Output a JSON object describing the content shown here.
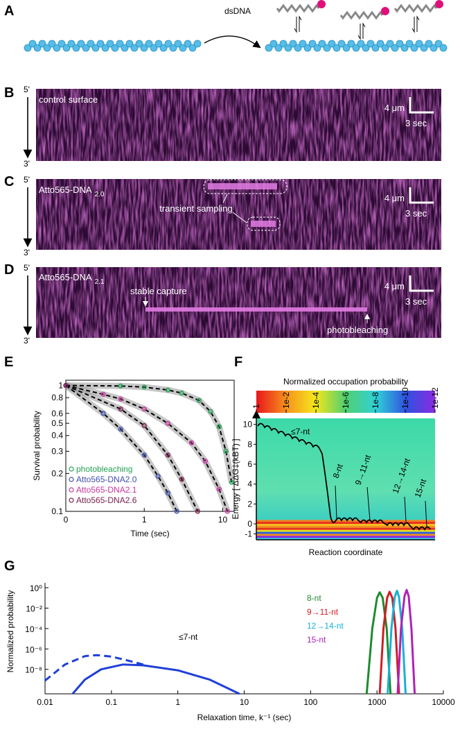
{
  "panel_labels": [
    "A",
    "B",
    "C",
    "D",
    "E",
    "F",
    "G"
  ],
  "schematic": {
    "reagent": "dsDNA"
  },
  "kymographs": [
    {
      "label": "control surface",
      "strand_top": "5'",
      "strand_bottom": "3'",
      "scale_length": "4 μm",
      "scale_time": "3 sec"
    },
    {
      "label": "Atto565-DNA",
      "label_sub": "2.0",
      "strand_top": "5'",
      "strand_bottom": "3'",
      "scale_length": "4 μm",
      "scale_time": "3 sec",
      "annotation": "transient sampling"
    },
    {
      "label": "Atto565-DNA",
      "label_sub": "2.1",
      "strand_top": "5'",
      "strand_bottom": "3'",
      "scale_length": "4 μm",
      "scale_time": "3 sec",
      "annotations": [
        "stable capture",
        "photobleaching"
      ]
    }
  ],
  "chart_data": [
    {
      "type": "survival",
      "xlabel": "Time (sec)",
      "ylabel": "Survival probability",
      "log_x": true,
      "log_y": true,
      "xlim": [
        0.1,
        14
      ],
      "ylim": [
        0.1,
        1.1
      ],
      "xticks": [
        {
          "value": 0.1,
          "label": "0"
        },
        1,
        10
      ],
      "yticks": [
        0.1,
        0.2,
        0.3,
        0.4,
        0.5,
        0.6,
        0.8,
        1
      ],
      "legend": "lower-left",
      "series": [
        {
          "name": "photobleaching",
          "color": "#22a052",
          "x": [
            0.1,
            0.5,
            1,
            2,
            3,
            5,
            7,
            9,
            11,
            13
          ],
          "values": [
            1,
            0.99,
            0.97,
            0.92,
            0.87,
            0.76,
            0.62,
            0.47,
            0.3,
            0.17
          ]
        },
        {
          "name": "Atto565-DNA2.0",
          "color": "#4050b0",
          "x": [
            0.1,
            0.3,
            0.5,
            1,
            1.5,
            2,
            2.6
          ],
          "values": [
            1,
            0.6,
            0.45,
            0.28,
            0.19,
            0.14,
            0.1
          ]
        },
        {
          "name": "Atto565-DNA2.1",
          "color": "#c8359e",
          "x": [
            0.1,
            0.3,
            0.5,
            1,
            2,
            4,
            6,
            9,
            11.5
          ],
          "values": [
            1,
            0.85,
            0.78,
            0.65,
            0.5,
            0.35,
            0.25,
            0.15,
            0.1
          ]
        },
        {
          "name": "Atto565-DNA2.6",
          "color": "#7a2050",
          "x": [
            0.1,
            0.5,
            1,
            2,
            3,
            4.8
          ],
          "values": [
            1,
            0.65,
            0.48,
            0.28,
            0.18,
            0.1
          ]
        }
      ]
    },
    {
      "type": "energy-landscape",
      "colorbar_title": "Normalized occupation probability",
      "colorbar_ticks": [
        {
          "value": 1,
          "label": "1"
        },
        {
          "value": 0.01,
          "label": "1e-2"
        },
        {
          "value": 0.0001,
          "label": "1e-4"
        },
        {
          "value": 1e-06,
          "label": "1e-6"
        },
        {
          "value": 1e-08,
          "label": "1e-8"
        },
        {
          "value": 1e-10,
          "label": "1e-10"
        },
        {
          "value": 1e-12,
          "label": "1e-12"
        }
      ],
      "ylabel": "Energy [ ΔΔG‡(kBT) ]",
      "xlabel": "Reaction coordinate",
      "ylim": [
        -1.6,
        10.6
      ],
      "yticks": [
        10,
        8,
        6,
        4,
        2,
        0,
        -1
      ],
      "annotations": [
        "≤7-nt",
        "8-nt",
        "9→11-nt",
        "12→14-nt",
        "15-nt"
      ]
    },
    {
      "type": "line",
      "xlabel": "Relaxation time, k⁻¹ (sec)",
      "ylabel": "Normalized probability",
      "log_x": true,
      "log_y": true,
      "xlim": [
        0.01,
        10000
      ],
      "ylim": [
        4e-11,
        3
      ],
      "xticks": [
        0.01,
        0.1,
        1,
        10,
        100,
        1000,
        10000
      ],
      "yticks": [
        {
          "value": 1,
          "label": "10⁰"
        },
        {
          "value": 0.01,
          "label": "10⁻²"
        },
        {
          "value": 0.0001,
          "label": "10⁻⁴"
        },
        {
          "value": 1e-06,
          "label": "10⁻⁶"
        },
        {
          "value": 1e-08,
          "label": "10⁻⁸"
        }
      ],
      "series": [
        {
          "name": "≤7-nt",
          "color": "#1f3fd8",
          "annotate": true,
          "x": [
            0.026,
            0.04,
            0.07,
            0.15,
            0.3,
            1,
            3,
            8.5
          ],
          "values": [
            4e-11,
            1e-09,
            1e-08,
            3e-08,
            2.5e-08,
            8e-09,
            1e-09,
            4e-11
          ]
        },
        {
          "color": "#1f3fd8",
          "dash": true,
          "x": [
            0.01,
            0.02,
            0.04,
            0.06,
            0.1,
            0.2,
            0.3
          ],
          "values": [
            8e-10,
            3e-08,
            2e-07,
            2.5e-07,
            1.8e-07,
            6e-08,
            3e-08
          ]
        },
        {
          "name": "8-nt",
          "color": "#1e8a2e",
          "x": [
            700,
            850,
            1000,
            1100,
            1220,
            1400,
            1600
          ],
          "values": [
            4e-11,
            0.0001,
            0.1,
            0.35,
            0.1,
            0.0001,
            4e-11
          ]
        },
        {
          "name": "9→11-nt",
          "color": "#d01c24",
          "x": [
            1100,
            1250,
            1420,
            1550,
            1700,
            1900,
            2150
          ],
          "values": [
            4e-11,
            0.0001,
            0.1,
            0.4,
            0.1,
            0.0001,
            4e-11
          ]
        },
        {
          "name": "12→14-nt",
          "color": "#19b0d8",
          "x": [
            1450,
            1650,
            1850,
            2000,
            2150,
            2400,
            2700
          ],
          "values": [
            4e-11,
            0.0001,
            0.12,
            0.5,
            0.12,
            0.0001,
            4e-11
          ]
        },
        {
          "name": "15-nt",
          "color": "#b020b8",
          "x": [
            2050,
            2300,
            2600,
            2800,
            3000,
            3300,
            3700
          ],
          "values": [
            4e-11,
            0.0001,
            0.15,
            0.6,
            0.15,
            0.0001,
            4e-11
          ]
        }
      ]
    }
  ]
}
